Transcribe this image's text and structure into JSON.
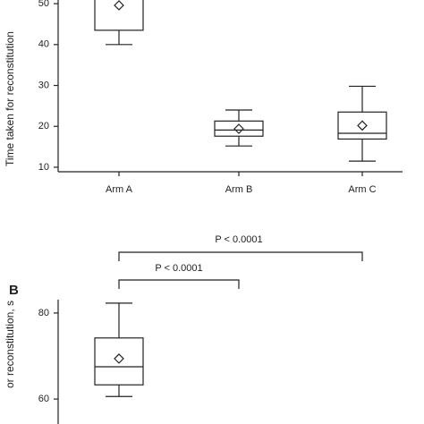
{
  "chart_data": [
    {
      "type": "box",
      "ylabel": "Time taken for reconstitution",
      "categories": [
        "Arm A",
        "Arm B",
        "Arm C"
      ],
      "boxes": [
        {
          "min": 40,
          "q1": 43.5,
          "median": null,
          "q3": null,
          "max": null,
          "mean": 49.6
        },
        {
          "min": 15.2,
          "q1": 17.6,
          "median": 19.1,
          "q3": 21.3,
          "max": 24.0,
          "mean": 19.4
        },
        {
          "min": 11.5,
          "q1": 16.9,
          "median": 18.3,
          "q3": 23.5,
          "max": 29.8,
          "mean": 20.2
        }
      ],
      "ylim": [
        8.9,
        50.9
      ],
      "yticks": [
        10,
        20,
        30,
        40,
        50
      ]
    },
    {
      "type": "box",
      "panel_label": "B",
      "ylabel": "or reconstitution, s",
      "annotations": [
        "P < 0.0001",
        "P < 0.0001"
      ],
      "boxes": [
        {
          "min": 60.6,
          "q1": 63.3,
          "median": 67.5,
          "q3": 74.2,
          "max": 82.3,
          "mean": 69.4
        }
      ],
      "ylim": [
        54.2,
        83.1
      ],
      "yticks": [
        60,
        80
      ]
    }
  ]
}
